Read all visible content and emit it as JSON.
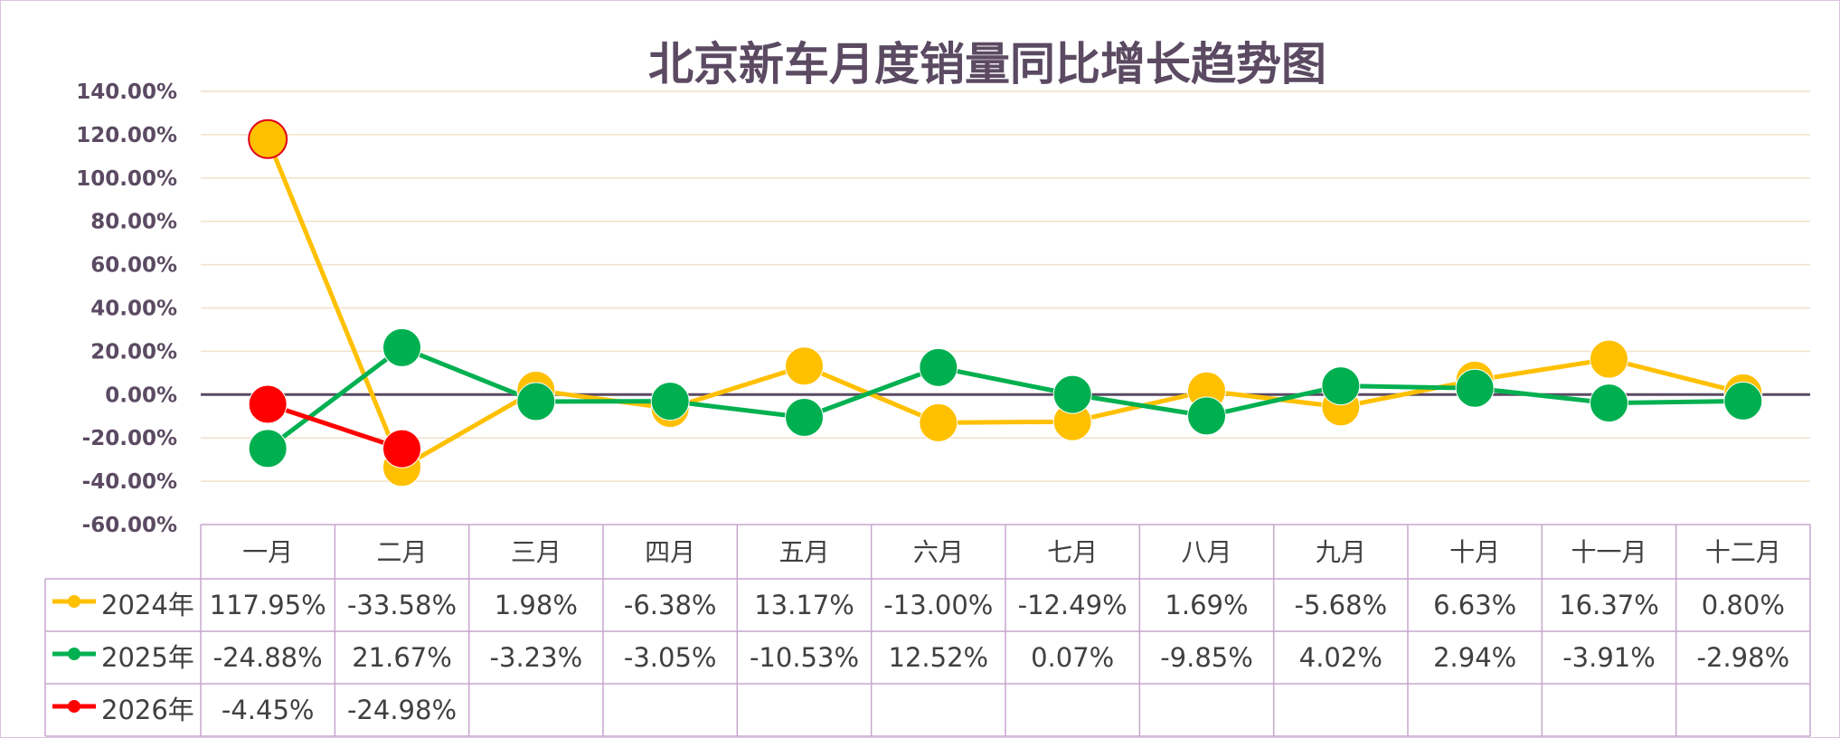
{
  "chart_data": {
    "type": "line",
    "title": "北京新车月度销量同比增长趋势图",
    "categories": [
      "一月",
      "二月",
      "三月",
      "四月",
      "五月",
      "六月",
      "七月",
      "八月",
      "九月",
      "十月",
      "十一月",
      "十二月"
    ],
    "y_ticks": [
      "140.00%",
      "120.00%",
      "100.00%",
      "80.00%",
      "60.00%",
      "40.00%",
      "20.00%",
      "0.00%",
      "-20.00%",
      "-40.00%",
      "-60.00%"
    ],
    "ylim": [
      -60,
      140
    ],
    "y_tick_step": 20,
    "grid": true,
    "legend_placement": "data table",
    "series": [
      {
        "name": "2024年",
        "color": "#FFC000",
        "values": [
          117.95,
          -33.58,
          1.98,
          -6.38,
          13.17,
          -13.0,
          -12.49,
          1.69,
          -5.68,
          6.63,
          16.37,
          0.8
        ],
        "labels": [
          "117.95%",
          "-33.58%",
          "1.98%",
          "-6.38%",
          "13.17%",
          "-13.00%",
          "-12.49%",
          "1.69%",
          "-5.68%",
          "6.63%",
          "16.37%",
          "0.80%"
        ]
      },
      {
        "name": "2025年",
        "color": "#00B050",
        "values": [
          -24.88,
          21.67,
          -3.23,
          -3.05,
          -10.53,
          12.52,
          0.07,
          -9.85,
          4.02,
          2.94,
          -3.91,
          -2.98
        ],
        "labels": [
          "-24.88%",
          "21.67%",
          "-3.23%",
          "-3.05%",
          "-10.53%",
          "12.52%",
          "0.07%",
          "-9.85%",
          "4.02%",
          "2.94%",
          "-3.91%",
          "-2.98%"
        ]
      },
      {
        "name": "2026年",
        "color": "#FF0000",
        "values": [
          -4.45,
          -24.98,
          null,
          null,
          null,
          null,
          null,
          null,
          null,
          null,
          null,
          null
        ],
        "labels": [
          "-4.45%",
          "-24.98%",
          "",
          "",
          "",
          "",
          "",
          "",
          "",
          "",
          "",
          ""
        ]
      }
    ]
  }
}
